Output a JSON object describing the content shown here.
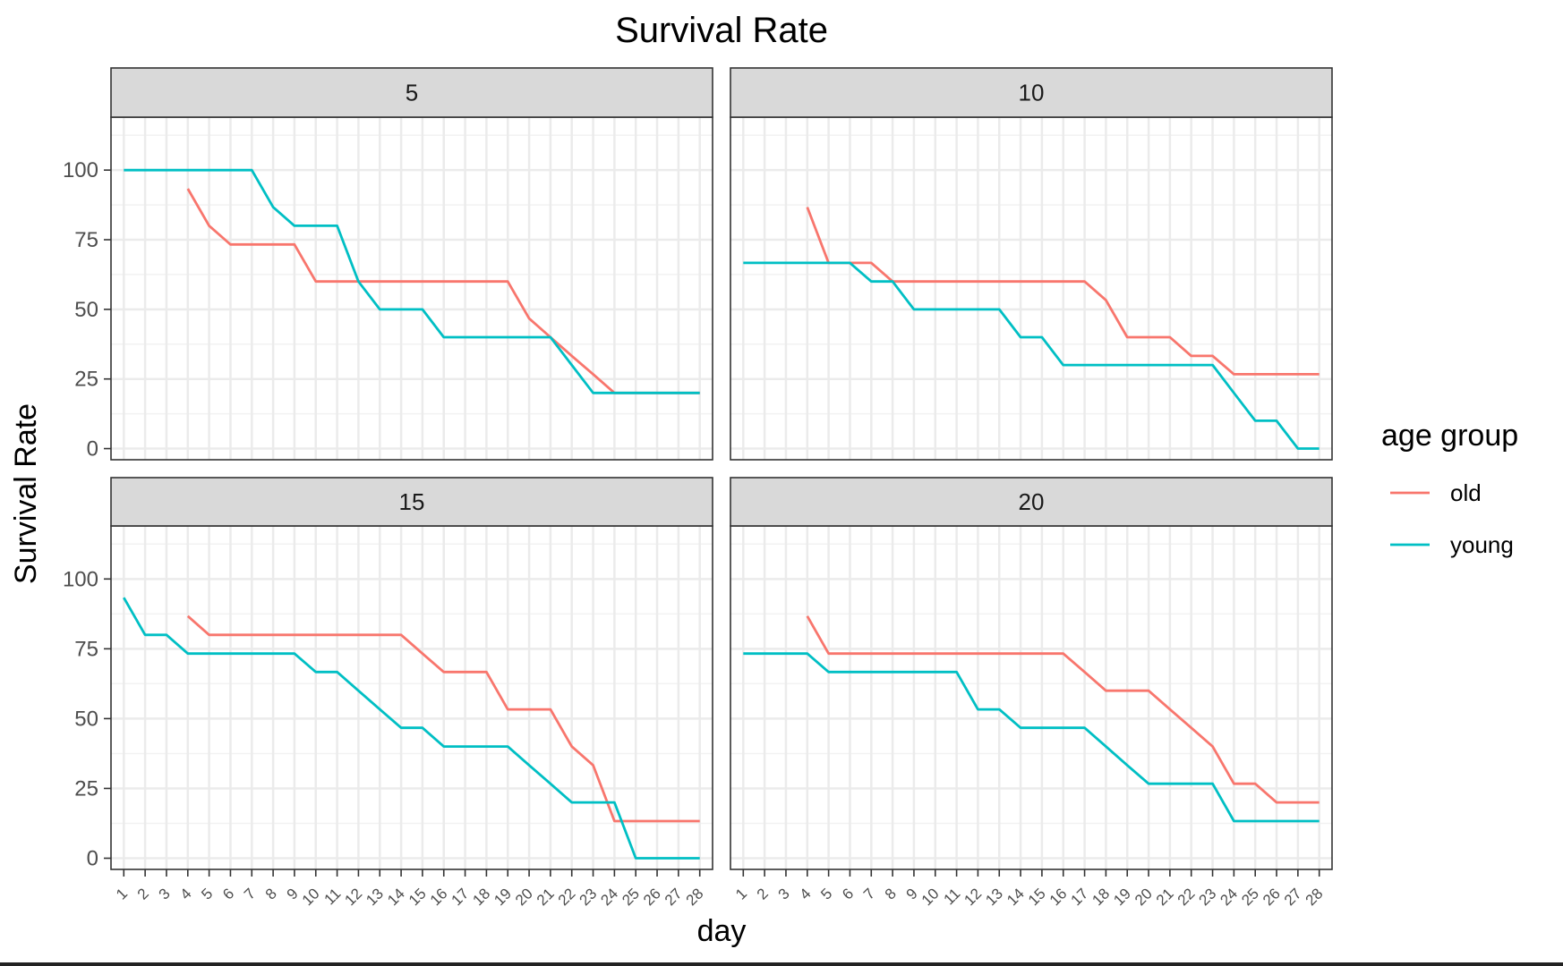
{
  "chart_data": {
    "type": "line",
    "title": "Survival Rate",
    "xlabel": "day",
    "ylabel": "Survival Rate",
    "x_ticks": [
      1,
      2,
      3,
      4,
      5,
      6,
      7,
      8,
      9,
      10,
      11,
      12,
      13,
      14,
      15,
      16,
      17,
      18,
      19,
      20,
      21,
      22,
      23,
      24,
      25,
      26,
      27,
      28
    ],
    "y_ticks": [
      0,
      25,
      50,
      75,
      100
    ],
    "ylim": [
      -4,
      119
    ],
    "xlim": [
      0.4,
      28.6
    ],
    "grid": true,
    "legend": {
      "title": "age group",
      "position": "right",
      "items": [
        {
          "name": "old",
          "color": "#F8766D"
        },
        {
          "name": "young",
          "color": "#00BFC4"
        }
      ]
    },
    "facets": [
      {
        "label": "5",
        "series": [
          {
            "name": "old",
            "x": [
              4,
              5,
              6,
              7,
              8,
              9,
              10,
              11,
              12,
              13,
              14,
              15,
              16,
              17,
              18,
              19,
              20,
              21,
              22,
              23,
              24,
              25,
              26,
              27,
              28
            ],
            "values": [
              93.3,
              80,
              73.3,
              73.3,
              73.3,
              73.3,
              60,
              60,
              60,
              60,
              60,
              60,
              60,
              60,
              60,
              60,
              46.7,
              40,
              33.3,
              26.7,
              20,
              20,
              20,
              20,
              20
            ]
          },
          {
            "name": "young",
            "x": [
              1,
              2,
              3,
              4,
              5,
              6,
              7,
              8,
              9,
              10,
              11,
              12,
              13,
              14,
              15,
              16,
              17,
              18,
              19,
              20,
              21,
              22,
              23,
              24,
              25,
              26,
              27,
              28
            ],
            "values": [
              100,
              100,
              100,
              100,
              100,
              100,
              100,
              86.7,
              80,
              80,
              80,
              60,
              50,
              50,
              50,
              40,
              40,
              40,
              40,
              40,
              40,
              30,
              20,
              20,
              20,
              20,
              20,
              20
            ]
          }
        ]
      },
      {
        "label": "10",
        "series": [
          {
            "name": "old",
            "x": [
              4,
              5,
              6,
              7,
              8,
              9,
              10,
              11,
              12,
              13,
              14,
              15,
              16,
              17,
              18,
              19,
              20,
              21,
              22,
              23,
              24,
              25,
              26,
              27,
              28
            ],
            "values": [
              86.7,
              66.7,
              66.7,
              66.7,
              60,
              60,
              60,
              60,
              60,
              60,
              60,
              60,
              60,
              60,
              53.3,
              40,
              40,
              40,
              33.3,
              33.3,
              26.7,
              26.7,
              26.7,
              26.7,
              26.7
            ]
          },
          {
            "name": "young",
            "x": [
              1,
              2,
              3,
              4,
              5,
              6,
              7,
              8,
              9,
              10,
              11,
              12,
              13,
              14,
              15,
              16,
              17,
              18,
              19,
              20,
              21,
              22,
              23,
              24,
              25,
              26,
              27,
              28
            ],
            "values": [
              66.7,
              66.7,
              66.7,
              66.7,
              66.7,
              66.7,
              60,
              60,
              50,
              50,
              50,
              50,
              50,
              40,
              40,
              30,
              30,
              30,
              30,
              30,
              30,
              30,
              30,
              20,
              10,
              10,
              0,
              0
            ]
          }
        ]
      },
      {
        "label": "15",
        "series": [
          {
            "name": "old",
            "x": [
              4,
              5,
              6,
              7,
              8,
              9,
              10,
              11,
              12,
              13,
              14,
              15,
              16,
              17,
              18,
              19,
              20,
              21,
              22,
              23,
              24,
              25,
              26,
              27,
              28
            ],
            "values": [
              86.7,
              80,
              80,
              80,
              80,
              80,
              80,
              80,
              80,
              80,
              80,
              73.3,
              66.7,
              66.7,
              66.7,
              53.3,
              53.3,
              53.3,
              40,
              33.3,
              13.3,
              13.3,
              13.3,
              13.3,
              13.3
            ]
          },
          {
            "name": "young",
            "x": [
              1,
              2,
              3,
              4,
              5,
              6,
              7,
              8,
              9,
              10,
              11,
              12,
              13,
              14,
              15,
              16,
              17,
              18,
              19,
              20,
              21,
              22,
              23,
              24,
              25,
              26,
              27,
              28
            ],
            "values": [
              93.3,
              80,
              80,
              73.3,
              73.3,
              73.3,
              73.3,
              73.3,
              73.3,
              66.7,
              66.7,
              60,
              53.3,
              46.7,
              46.7,
              40,
              40,
              40,
              40,
              33.3,
              26.7,
              20,
              20,
              20,
              0,
              0,
              0,
              0
            ]
          }
        ]
      },
      {
        "label": "20",
        "series": [
          {
            "name": "old",
            "x": [
              4,
              5,
              6,
              7,
              8,
              9,
              10,
              11,
              12,
              13,
              14,
              15,
              16,
              17,
              18,
              19,
              20,
              21,
              22,
              23,
              24,
              25,
              26,
              27,
              28
            ],
            "values": [
              86.7,
              73.3,
              73.3,
              73.3,
              73.3,
              73.3,
              73.3,
              73.3,
              73.3,
              73.3,
              73.3,
              73.3,
              73.3,
              66.7,
              60,
              60,
              60,
              53.3,
              46.7,
              40,
              26.7,
              26.7,
              20,
              20,
              20
            ]
          },
          {
            "name": "young",
            "x": [
              1,
              2,
              3,
              4,
              5,
              6,
              7,
              8,
              9,
              10,
              11,
              12,
              13,
              14,
              15,
              16,
              17,
              18,
              19,
              20,
              21,
              22,
              23,
              24,
              25,
              26,
              27,
              28
            ],
            "values": [
              73.3,
              73.3,
              73.3,
              73.3,
              66.7,
              66.7,
              66.7,
              66.7,
              66.7,
              66.7,
              66.7,
              53.3,
              53.3,
              46.7,
              46.7,
              46.7,
              46.7,
              40,
              33.3,
              26.7,
              26.7,
              26.7,
              26.7,
              13.3,
              13.3,
              13.3,
              13.3,
              13.3
            ]
          }
        ]
      }
    ]
  }
}
